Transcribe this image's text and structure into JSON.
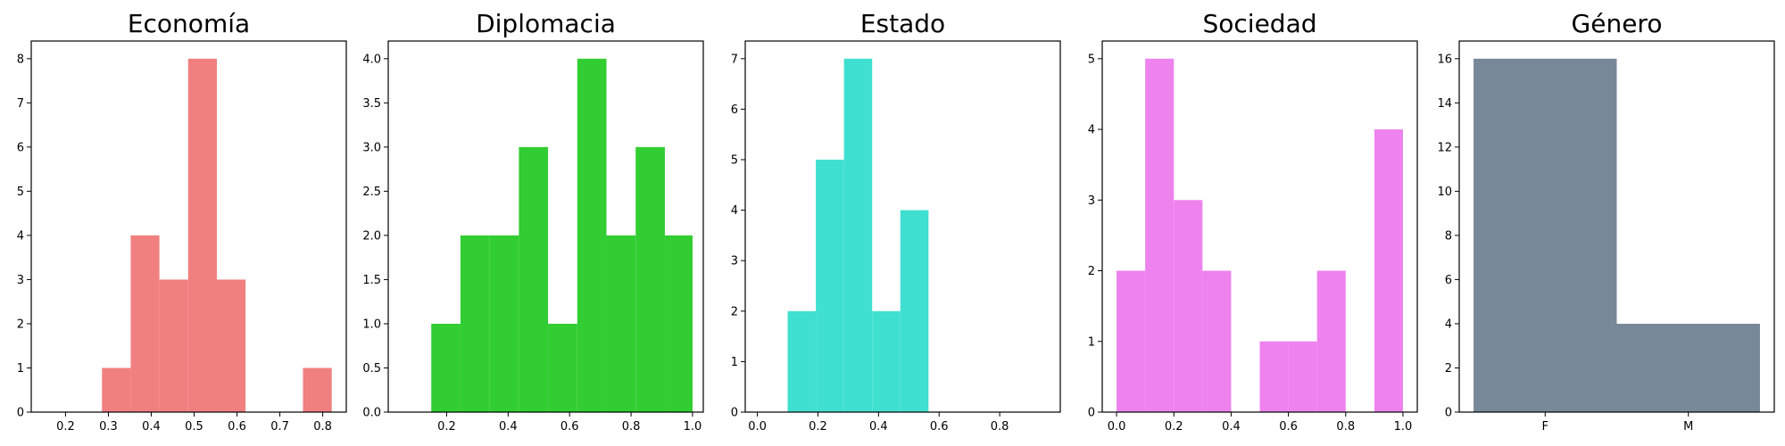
{
  "chart_data": [
    {
      "type": "bar",
      "title": "Economía",
      "color": "#f08080",
      "xlim": [
        0.12,
        0.855
      ],
      "ylim": [
        0,
        8.4
      ],
      "xticks": [
        0.2,
        0.3,
        0.4,
        0.5,
        0.6,
        0.7,
        0.8
      ],
      "xtick_labels": [
        "0.2",
        "0.3",
        "0.4",
        "0.5",
        "0.6",
        "0.7",
        "0.8"
      ],
      "yticks": [
        0,
        1,
        2,
        3,
        4,
        5,
        6,
        7,
        8
      ],
      "ytick_labels": [
        "0",
        "1",
        "2",
        "3",
        "4",
        "5",
        "6",
        "7",
        "8"
      ],
      "bins": [
        {
          "x0": 0.285,
          "x1": 0.352,
          "value": 1
        },
        {
          "x0": 0.352,
          "x1": 0.419,
          "value": 4
        },
        {
          "x0": 0.419,
          "x1": 0.486,
          "value": 3
        },
        {
          "x0": 0.486,
          "x1": 0.553,
          "value": 8
        },
        {
          "x0": 0.553,
          "x1": 0.62,
          "value": 3
        },
        {
          "x0": 0.62,
          "x1": 0.687,
          "value": 0
        },
        {
          "x0": 0.687,
          "x1": 0.754,
          "value": 0
        },
        {
          "x0": 0.754,
          "x1": 0.821,
          "value": 1
        }
      ]
    },
    {
      "type": "bar",
      "title": "Diplomacia",
      "color": "#32cd32",
      "xlim": [
        0.01,
        1.035
      ],
      "ylim": [
        0,
        4.2
      ],
      "xticks": [
        0.2,
        0.4,
        0.6,
        0.8,
        1.0
      ],
      "xtick_labels": [
        "0.2",
        "0.4",
        "0.6",
        "0.8",
        "1.0"
      ],
      "yticks": [
        0,
        0.5,
        1,
        1.5,
        2,
        2.5,
        3,
        3.5,
        4
      ],
      "ytick_labels": [
        "0.0",
        "0.5",
        "1.0",
        "1.5",
        "2.0",
        "2.5",
        "3.0",
        "3.5",
        "4.0"
      ],
      "bins": [
        {
          "x0": 0.15,
          "x1": 0.245,
          "value": 1
        },
        {
          "x0": 0.245,
          "x1": 0.34,
          "value": 2
        },
        {
          "x0": 0.34,
          "x1": 0.435,
          "value": 2
        },
        {
          "x0": 0.435,
          "x1": 0.53,
          "value": 3
        },
        {
          "x0": 0.53,
          "x1": 0.625,
          "value": 1
        },
        {
          "x0": 0.625,
          "x1": 0.72,
          "value": 4
        },
        {
          "x0": 0.72,
          "x1": 0.815,
          "value": 2
        },
        {
          "x0": 0.815,
          "x1": 0.91,
          "value": 3
        },
        {
          "x0": 0.91,
          "x1": 1.0,
          "value": 2
        }
      ]
    },
    {
      "type": "bar",
      "title": "Estado",
      "color": "#40e0d0",
      "xlim": [
        -0.04,
        1.0
      ],
      "ylim": [
        0,
        7.35
      ],
      "xticks": [
        0.0,
        0.2,
        0.4,
        0.6,
        0.8
      ],
      "xtick_labels": [
        "0.0",
        "0.2",
        "0.4",
        "0.6",
        "0.8"
      ],
      "yticks": [
        0,
        1,
        2,
        3,
        4,
        5,
        6,
        7
      ],
      "ytick_labels": [
        "0",
        "1",
        "2",
        "3",
        "4",
        "5",
        "6",
        "7"
      ],
      "bins": [
        {
          "x0": 0.1,
          "x1": 0.193,
          "value": 2
        },
        {
          "x0": 0.193,
          "x1": 0.286,
          "value": 5
        },
        {
          "x0": 0.286,
          "x1": 0.379,
          "value": 7
        },
        {
          "x0": 0.379,
          "x1": 0.472,
          "value": 2
        },
        {
          "x0": 0.472,
          "x1": 0.565,
          "value": 4
        }
      ]
    },
    {
      "type": "bar",
      "title": "Sociedad",
      "color": "#ee82ee",
      "xlim": [
        -0.05,
        1.05
      ],
      "ylim": [
        0,
        5.25
      ],
      "xticks": [
        0.0,
        0.2,
        0.4,
        0.6,
        0.8,
        1.0
      ],
      "xtick_labels": [
        "0.0",
        "0.2",
        "0.4",
        "0.6",
        "0.8",
        "1.0"
      ],
      "yticks": [
        0,
        1,
        2,
        3,
        4,
        5
      ],
      "ytick_labels": [
        "0",
        "1",
        "2",
        "3",
        "4",
        "5"
      ],
      "bins": [
        {
          "x0": 0.0,
          "x1": 0.1,
          "value": 2
        },
        {
          "x0": 0.1,
          "x1": 0.2,
          "value": 5
        },
        {
          "x0": 0.2,
          "x1": 0.3,
          "value": 3
        },
        {
          "x0": 0.3,
          "x1": 0.4,
          "value": 2
        },
        {
          "x0": 0.4,
          "x1": 0.5,
          "value": 0
        },
        {
          "x0": 0.5,
          "x1": 0.6,
          "value": 1
        },
        {
          "x0": 0.6,
          "x1": 0.7,
          "value": 1
        },
        {
          "x0": 0.7,
          "x1": 0.8,
          "value": 2
        },
        {
          "x0": 0.8,
          "x1": 0.9,
          "value": 0
        },
        {
          "x0": 0.9,
          "x1": 1.0,
          "value": 4
        }
      ]
    },
    {
      "type": "bar",
      "title": "Género",
      "color": "#778899",
      "xlim": [
        -0.6,
        1.6
      ],
      "ylim": [
        0,
        16.8
      ],
      "xticks": [
        0,
        1
      ],
      "xtick_labels": [
        "F",
        "M"
      ],
      "yticks": [
        0,
        2,
        4,
        6,
        8,
        10,
        12,
        14,
        16
      ],
      "ytick_labels": [
        "0",
        "2",
        "4",
        "6",
        "8",
        "10",
        "12",
        "14",
        "16"
      ],
      "bins": [
        {
          "x0": -0.5,
          "x1": 0.5,
          "value": 16
        },
        {
          "x0": 0.5,
          "x1": 1.5,
          "value": 4
        }
      ]
    }
  ]
}
